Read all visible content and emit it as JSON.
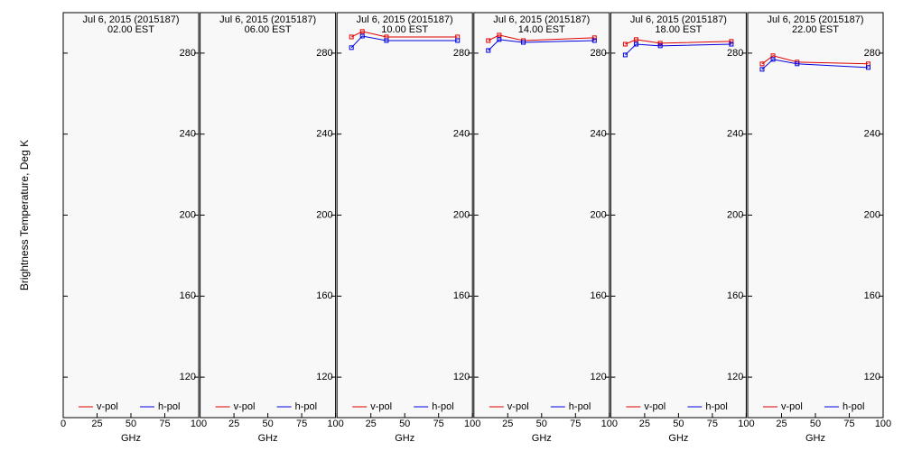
{
  "chart_data": [
    {
      "type": "line",
      "title": "Jul  6, 2015 (2015187)",
      "subtitle": "02.00 EST",
      "xlabel": "GHz",
      "ylabel": "Brightness Temperature, Deg K",
      "x": [
        10.65,
        18.7,
        36.5,
        89
      ],
      "xlim": [
        0,
        100
      ],
      "ylim": [
        100,
        300
      ],
      "xticks": [
        0,
        25,
        50,
        75,
        100
      ],
      "yticks": [
        120,
        160,
        200,
        240,
        280
      ],
      "series": [
        {
          "name": "v-pol",
          "color": "#e00000",
          "values": [
            null,
            null,
            null,
            null
          ]
        },
        {
          "name": "h-pol",
          "color": "#0000e0",
          "values": [
            null,
            null,
            null,
            null
          ]
        }
      ]
    },
    {
      "type": "line",
      "title": "Jul  6, 2015 (2015187)",
      "subtitle": "06.00 EST",
      "xlabel": "GHz",
      "x": [
        10.65,
        18.7,
        36.5,
        89
      ],
      "xlim": [
        0,
        100
      ],
      "ylim": [
        100,
        300
      ],
      "xticks": [
        25,
        50,
        75,
        100
      ],
      "yticks": [
        120,
        160,
        200,
        240,
        280
      ],
      "series": [
        {
          "name": "v-pol",
          "color": "#e00000",
          "values": [
            null,
            null,
            null,
            null
          ]
        },
        {
          "name": "h-pol",
          "color": "#0000e0",
          "values": [
            null,
            null,
            null,
            null
          ]
        }
      ]
    },
    {
      "type": "line",
      "title": "Jul  6, 2015 (2015187)",
      "subtitle": "10.00 EST",
      "xlabel": "GHz",
      "x": [
        10.65,
        18.7,
        36.5,
        89
      ],
      "xlim": [
        0,
        100
      ],
      "ylim": [
        100,
        300
      ],
      "xticks": [
        25,
        50,
        75,
        100
      ],
      "yticks": [
        120,
        160,
        200,
        240,
        280
      ],
      "series": [
        {
          "name": "v-pol",
          "color": "#e00000",
          "values": [
            288,
            290.7,
            288,
            288
          ]
        },
        {
          "name": "h-pol",
          "color": "#0000e0",
          "values": [
            282.7,
            288.4,
            286.2,
            286.2
          ]
        }
      ]
    },
    {
      "type": "line",
      "title": "Jul  6, 2015 (2015187)",
      "subtitle": "14.00 EST",
      "xlabel": "GHz",
      "x": [
        10.65,
        18.7,
        36.5,
        89
      ],
      "xlim": [
        0,
        100
      ],
      "ylim": [
        100,
        300
      ],
      "xticks": [
        25,
        50,
        75,
        100
      ],
      "yticks": [
        120,
        160,
        200,
        240,
        280
      ],
      "series": [
        {
          "name": "v-pol",
          "color": "#e00000",
          "values": [
            286.2,
            288.9,
            286.2,
            287.6
          ]
        },
        {
          "name": "h-pol",
          "color": "#0000e0",
          "values": [
            281.3,
            286.7,
            285.3,
            286.2
          ]
        }
      ]
    },
    {
      "type": "line",
      "title": "Jul  6, 2015 (2015187)",
      "subtitle": "18.00 EST",
      "xlabel": "GHz",
      "x": [
        10.65,
        18.7,
        36.5,
        89
      ],
      "xlim": [
        0,
        100
      ],
      "ylim": [
        100,
        300
      ],
      "xticks": [
        25,
        50,
        75,
        100
      ],
      "yticks": [
        120,
        160,
        200,
        240,
        280
      ],
      "series": [
        {
          "name": "v-pol",
          "color": "#e00000",
          "values": [
            284.4,
            286.7,
            284.9,
            285.8
          ]
        },
        {
          "name": "h-pol",
          "color": "#0000e0",
          "values": [
            279.1,
            284.4,
            283.6,
            284.4
          ]
        }
      ]
    },
    {
      "type": "line",
      "title": "Jul  6, 2015 (2015187)",
      "subtitle": "22.00 EST",
      "xlabel": "GHz",
      "x": [
        10.65,
        18.7,
        36.5,
        89
      ],
      "xlim": [
        0,
        100
      ],
      "ylim": [
        100,
        300
      ],
      "xticks": [
        25,
        50,
        75,
        100
      ],
      "yticks": [
        120,
        160,
        200,
        240,
        280
      ],
      "series": [
        {
          "name": "v-pol",
          "color": "#e00000",
          "values": [
            274.7,
            278.7,
            275.6,
            274.7
          ]
        },
        {
          "name": "h-pol",
          "color": "#0000e0",
          "values": [
            272,
            276.9,
            274.7,
            272.9
          ]
        }
      ]
    }
  ]
}
